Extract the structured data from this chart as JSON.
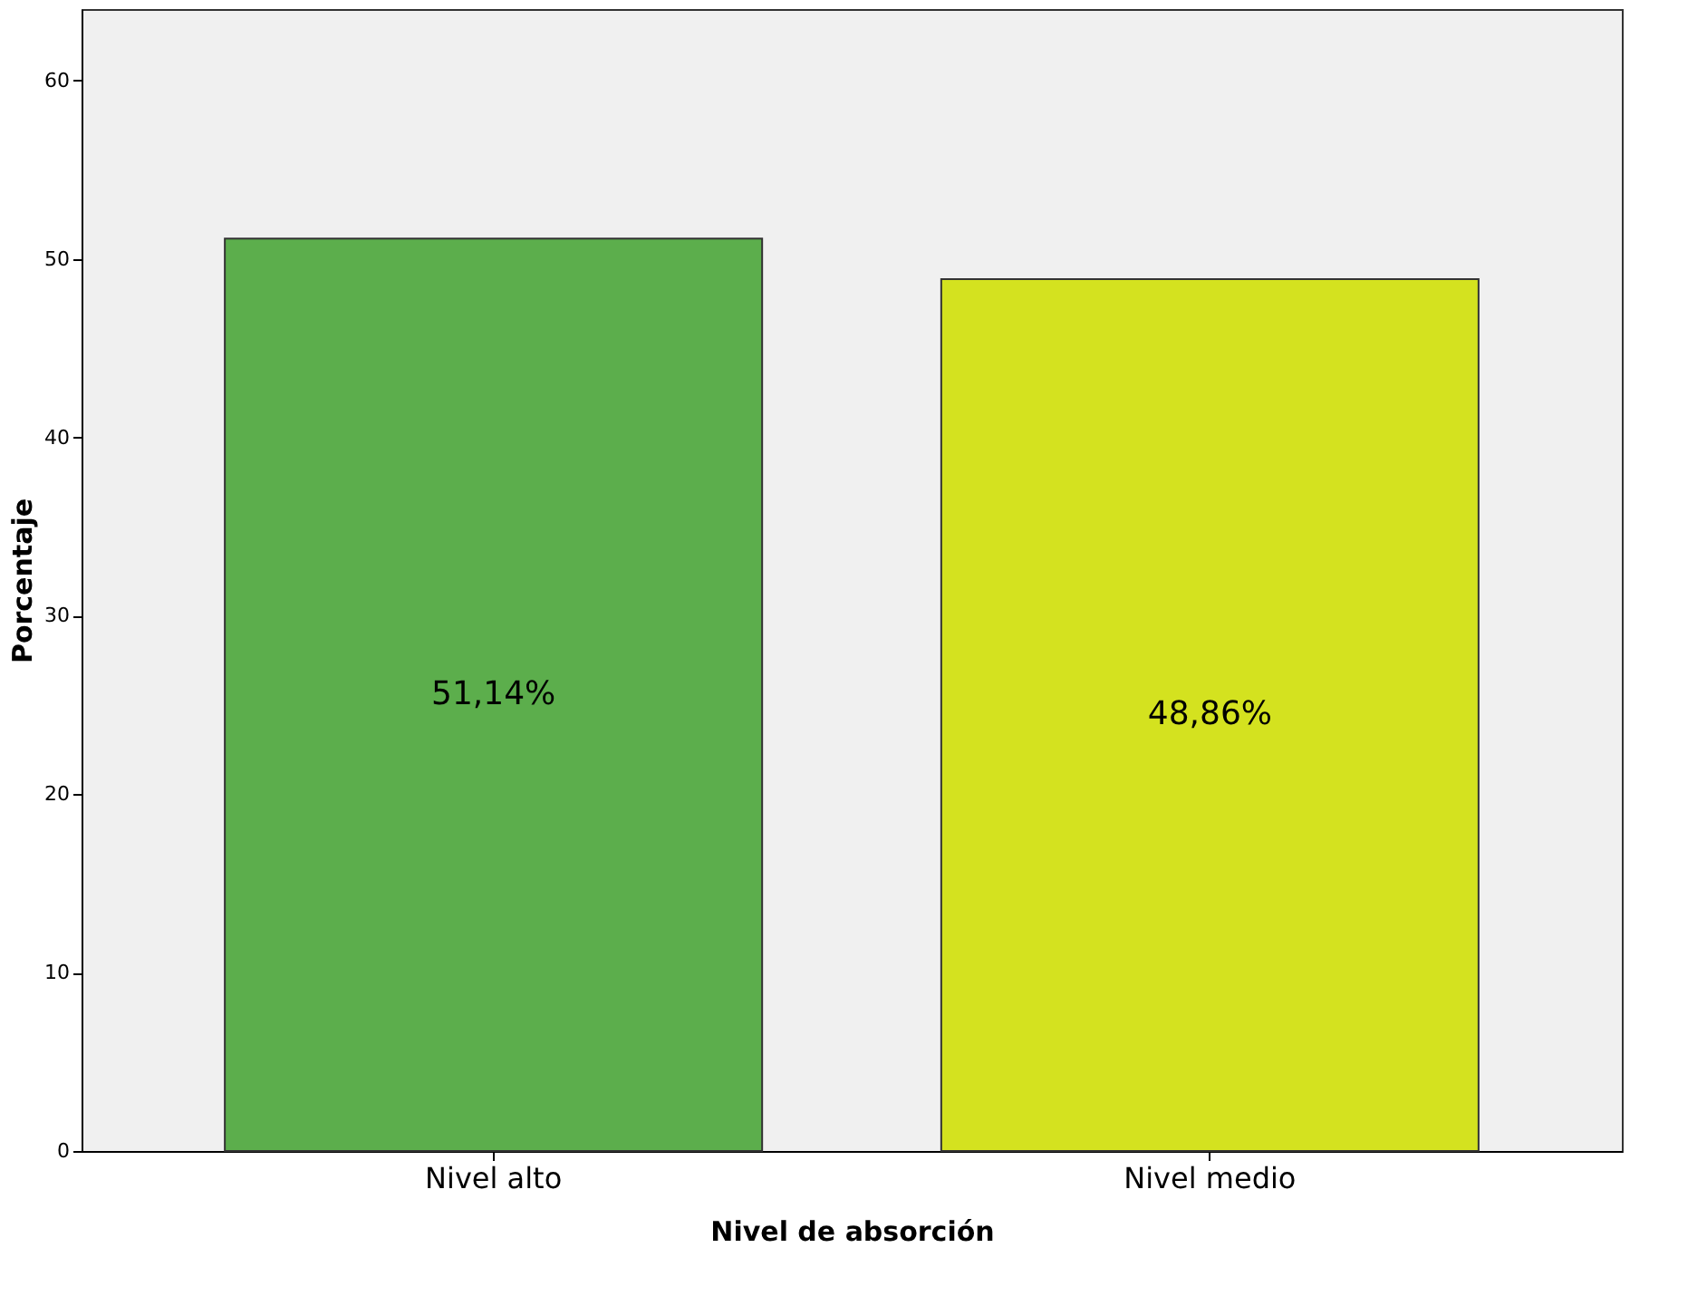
{
  "chart_data": {
    "type": "bar",
    "xlabel": "Nivel de absorción",
    "ylabel": "Porcentaje",
    "categories": [
      "Nivel alto",
      "Nivel medio"
    ],
    "values": [
      51.14,
      48.86
    ],
    "colors": [
      "#5cae4c",
      "#d4e21f"
    ],
    "value_labels": [
      "51,14%",
      "48,86%"
    ],
    "ylim": [
      0,
      64
    ],
    "yticks": [
      0,
      10,
      20,
      30,
      40,
      50,
      60
    ],
    "grid": false
  }
}
